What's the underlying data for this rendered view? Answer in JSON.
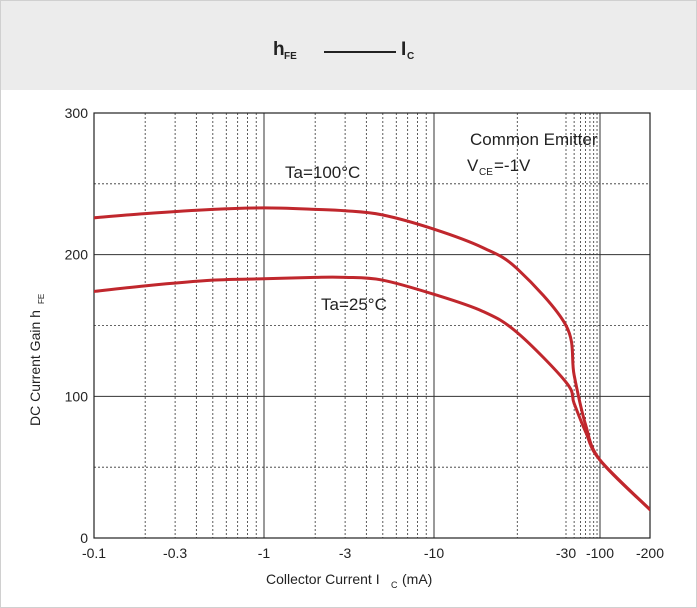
{
  "header": {
    "left_symbol": "h",
    "left_subscript": "FE",
    "right_symbol": "I",
    "right_subscript": "C"
  },
  "colors": {
    "curve": "#c0272d",
    "header_bg": "#ececec",
    "grid": "#333333"
  },
  "chart_data": {
    "type": "line",
    "x_scale": "log",
    "x_tick_labels": [
      "-0.1",
      "-0.3",
      "-1",
      "-3",
      "-10",
      "-30",
      "-100",
      "-200"
    ],
    "y_ticks": [
      0,
      100,
      200,
      300
    ],
    "xlim": [
      0.1,
      200
    ],
    "ylim": [
      0,
      300
    ],
    "xlabel": "Collector Current I",
    "xlabel_subscript": "C",
    "xlabel_unit": "(mA)",
    "ylabel": "DC Current Gain h",
    "ylabel_subscript": "FE",
    "annotation": {
      "line1": "Common Emitter",
      "line2_main": "V",
      "line2_sub": "CE",
      "line2_rest": "=-1V"
    },
    "series": [
      {
        "name": "Ta=100°C",
        "x": [
          -0.1,
          -0.2,
          -0.5,
          -1,
          -2,
          -3,
          -5,
          -10,
          -15,
          -20,
          -30,
          -40,
          -60,
          -100,
          -200
        ],
        "y": [
          226,
          229,
          232,
          233,
          232,
          231,
          228,
          218,
          205,
          190,
          150,
          115,
          80,
          55,
          20
        ]
      },
      {
        "name": "Ta=25°C",
        "x": [
          -0.1,
          -0.2,
          -0.5,
          -1,
          -2,
          -3,
          -5,
          -10,
          -15,
          -20,
          -30,
          -40,
          -60,
          -100,
          -200
        ],
        "y": [
          174,
          178,
          182,
          183,
          184,
          184,
          182,
          172,
          160,
          145,
          110,
          95,
          75,
          55,
          20
        ]
      }
    ]
  }
}
